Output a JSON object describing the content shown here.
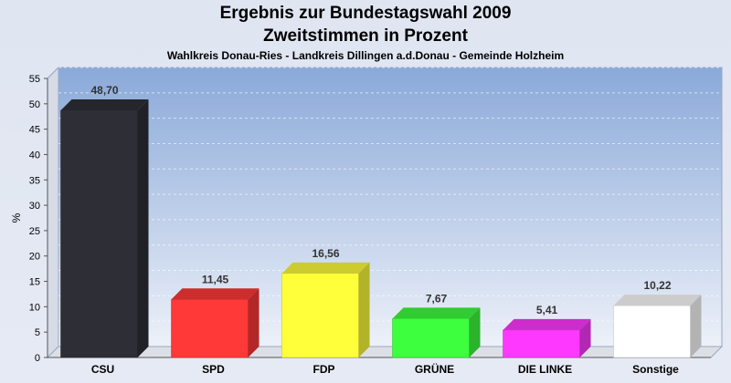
{
  "header": {
    "title_line1": "Ergebnis zur Bundestagswahl 2009",
    "title_line2": "Zweitstimmen in Prozent",
    "subtitle": "Wahlkreis Donau-Ries - Landkreis Dillingen a.d.Donau - Gemeinde Holzheim"
  },
  "chart_data": {
    "type": "bar",
    "title": "Ergebnis zur Bundestagswahl 2009 Zweitstimmen in Prozent",
    "subtitle": "Wahlkreis Donau-Ries - Landkreis Dillingen a.d.Donau - Gemeinde Holzheim",
    "ylabel": "%",
    "xlabel": "",
    "ylim": [
      0,
      55
    ],
    "yticks": [
      0,
      5,
      10,
      15,
      20,
      25,
      30,
      35,
      40,
      45,
      50,
      55
    ],
    "grid": true,
    "categories": [
      "CSU",
      "SPD",
      "FDP",
      "GRÜNE",
      "DIE LINKE",
      "Sonstige"
    ],
    "values": [
      48.7,
      11.45,
      16.56,
      7.67,
      5.41,
      10.22
    ],
    "value_labels": [
      "48,70",
      "11,45",
      "16,56",
      "7,67",
      "5,41",
      "10,22"
    ],
    "colors": [
      "#2e2f36",
      "#ff3838",
      "#ffff3a",
      "#3dff3d",
      "#ff38ff",
      "#ffffff"
    ]
  }
}
